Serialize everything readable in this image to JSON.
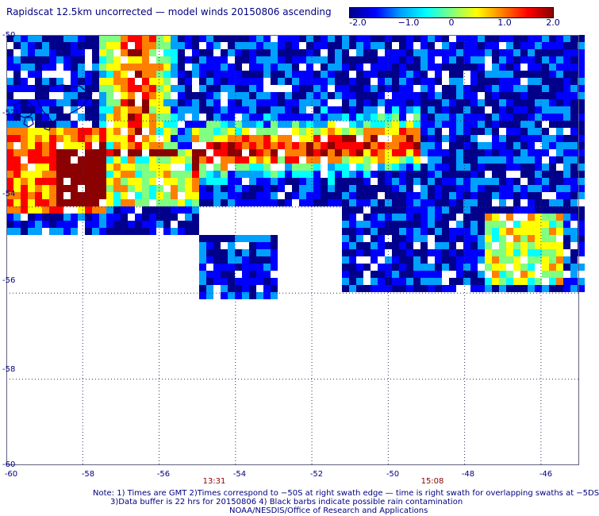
{
  "title": "Rapidscat 12.5km uncorrected — model winds 20150806 ascending",
  "colorbar": {
    "labels": [
      "-2.0",
      "−1.0",
      "0",
      "1.0",
      "2.0"
    ],
    "values": [
      -2.0,
      -1.0,
      0,
      1.0,
      2.0
    ],
    "min": -2.0,
    "max": 2.0,
    "colors": [
      "#00008b",
      "#0000ff",
      "#00a0ff",
      "#00ffff",
      "#80ff80",
      "#ffff00",
      "#ff8000",
      "#ff0000",
      "#8b0000"
    ]
  },
  "map": {
    "lon_range": [
      -60,
      -45
    ],
    "lat_range": [
      -60,
      -50
    ],
    "lon_ticks": [
      "-60",
      "-58",
      "-56",
      "-54",
      "-52",
      "-50",
      "-48",
      "-46"
    ],
    "lat_ticks": [
      "-50",
      "-52",
      "-54",
      "-56",
      "-58",
      "-60"
    ],
    "grid": "dotted",
    "land": "Falkland Islands outline",
    "swath_time_labels": [
      {
        "text": "13:31",
        "lon": -54.8
      },
      {
        "text": "15:08",
        "lon": -49.1
      }
    ]
  },
  "notes": [
    "Note: 1) Times are GMT 2)Times correspond to −50S at right swath edge — time is right swath for overlapping swaths at −5DS",
    "3)Data buffer is 22 hrs for 20150806 4) Black barbs indicate possible rain contamination",
    "NOAA/NESDIS/Office of Research and Applications"
  ]
}
